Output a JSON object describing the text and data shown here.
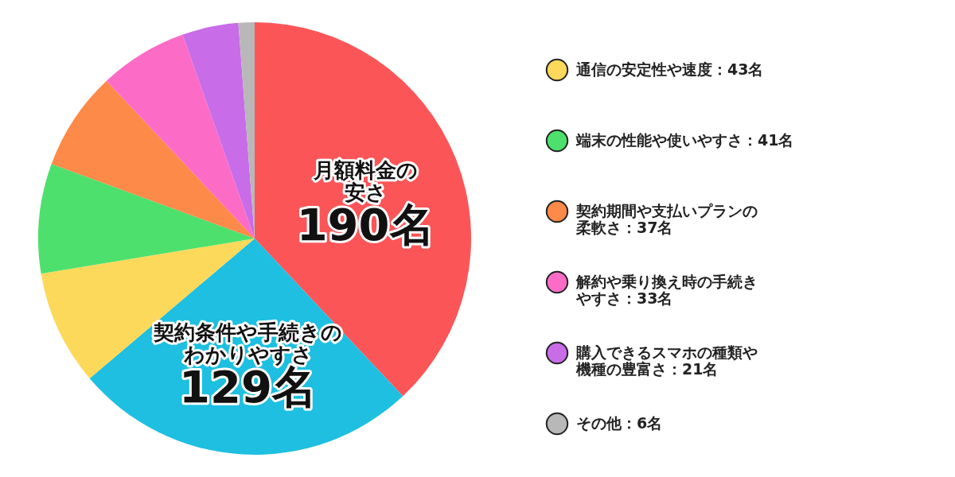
{
  "chart_data": {
    "type": "pie",
    "categories": [
      "月額料金の安さ",
      "契約条件や手続きのわかりやすさ",
      "通信の安定性や速度",
      "端末の性能や使いやすさ",
      "契約期間や支払いプランの柔軟さ",
      "解約や乗り換え時の手続きやすさ",
      "購入できるスマホの種類や機種の豊富さ",
      "その他"
    ],
    "values": [
      190,
      129,
      43,
      41,
      37,
      33,
      21,
      6
    ],
    "value_labels": [
      "190名",
      "129名",
      "43名",
      "41名",
      "37名",
      "33名",
      "21名",
      "6名"
    ],
    "colors": [
      "#fc5558",
      "#1ebfe0",
      "#fcd95a",
      "#4de06d",
      "#fd8a48",
      "#fc6cc7",
      "#c86ce8",
      "#b8b8b8"
    ],
    "legend": "right"
  }
}
